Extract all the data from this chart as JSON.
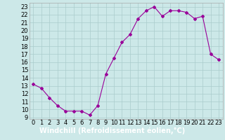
{
  "hours": [
    0,
    1,
    2,
    3,
    4,
    5,
    6,
    7,
    8,
    9,
    10,
    11,
    12,
    13,
    14,
    15,
    16,
    17,
    18,
    19,
    20,
    21,
    22,
    23
  ],
  "values": [
    13.2,
    12.7,
    11.5,
    10.5,
    9.8,
    9.8,
    9.8,
    9.3,
    10.5,
    14.5,
    16.5,
    18.5,
    19.5,
    21.5,
    22.5,
    23.0,
    21.8,
    22.5,
    22.5,
    22.3,
    21.5,
    21.8,
    17.0,
    16.3
  ],
  "line_color": "#990099",
  "marker": "D",
  "marker_size": 2.0,
  "bg_color": "#cce8e8",
  "grid_color": "#aacccc",
  "xlabel": "Windchill (Refroidissement éolien,°C)",
  "ylabel_ticks": [
    9,
    10,
    11,
    12,
    13,
    14,
    15,
    16,
    17,
    18,
    19,
    20,
    21,
    22,
    23
  ],
  "xlim": [
    -0.5,
    23.5
  ],
  "ylim": [
    8.8,
    23.5
  ],
  "xlabel_fontsize": 7,
  "tick_fontsize": 6,
  "xlabel_color": "#ffffff",
  "xlabel_bg": "#7744aa"
}
